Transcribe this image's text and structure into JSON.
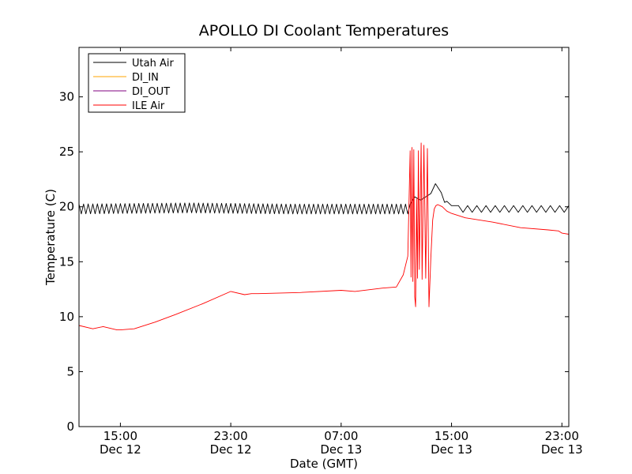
{
  "chart_data": {
    "type": "line",
    "title": "APOLLO DI Coolant Temperatures",
    "xlabel": "Date (GMT)",
    "ylabel": "Temperature (C)",
    "xlim": [
      "2012-12-12 12:00",
      "2012-12-13 23:30"
    ],
    "ylim": [
      0,
      34.5
    ],
    "yticks": [
      0,
      5,
      10,
      15,
      20,
      25,
      30
    ],
    "xticks": [
      {
        "x": "2012-12-12 15:00",
        "time": "15:00",
        "date": "Dec 12"
      },
      {
        "x": "2012-12-12 23:00",
        "time": "23:00",
        "date": "Dec 12"
      },
      {
        "x": "2012-12-13 07:00",
        "time": "07:00",
        "date": "Dec 13"
      },
      {
        "x": "2012-12-13 15:00",
        "time": "15:00",
        "date": "Dec 13"
      },
      {
        "x": "2012-12-13 23:00",
        "time": "23:00",
        "date": "Dec 13"
      }
    ],
    "grid": false,
    "legend_position": "top-left",
    "series": [
      {
        "name": "Utah Air",
        "color": "#000000",
        "x": [
          "2012-12-12 12:00",
          "2012-12-12 20:00",
          "2012-12-13 03:00",
          "2012-12-13 10:00",
          "2012-12-13 12:00",
          "2012-12-13 12:20",
          "2012-12-13 12:45",
          "2012-12-13 13:30",
          "2012-12-13 13:50",
          "2012-12-13 14:15",
          "2012-12-13 14:30",
          "2012-12-13 14:40",
          "2012-12-13 15:00",
          "2012-12-13 15:30",
          "2012-12-13 17:00",
          "2012-12-13 19:00",
          "2012-12-13 21:00",
          "2012-12-13 23:30"
        ],
        "y": [
          19.8,
          19.9,
          19.8,
          19.8,
          19.8,
          20.9,
          20.6,
          21.2,
          22.1,
          21.3,
          20.4,
          20.5,
          20.1,
          19.8,
          19.8,
          19.8,
          19.8,
          19.8
        ],
        "oscillation": {
          "start": "2012-12-12 12:00",
          "end": "2012-12-13 12:00",
          "amplitude": 0.45
        },
        "oscillation_after": {
          "start": "2012-12-13 15:30",
          "end": "2012-12-13 23:30",
          "amplitude": 0.3
        }
      },
      {
        "name": "DI_IN",
        "color": "#ffa500",
        "x": [],
        "y": []
      },
      {
        "name": "DI_OUT",
        "color": "#800080",
        "x": [],
        "y": []
      },
      {
        "name": "ILE Air",
        "color": "#ff0000",
        "x": [
          "2012-12-12 12:00",
          "2012-12-12 13:00",
          "2012-12-12 13:45",
          "2012-12-12 14:45",
          "2012-12-12 15:00",
          "2012-12-12 16:00",
          "2012-12-12 17:30",
          "2012-12-12 19:00",
          "2012-12-12 21:00",
          "2012-12-12 23:00",
          "2012-12-13 00:00",
          "2012-12-13 00:30",
          "2012-12-13 01:00",
          "2012-12-13 04:00",
          "2012-12-13 07:00",
          "2012-12-13 08:00",
          "2012-12-13 10:00",
          "2012-12-13 11:00",
          "2012-12-13 11:30",
          "2012-12-13 11:50",
          "2012-12-13 12:00",
          "2012-12-13 12:04",
          "2012-12-13 12:08",
          "2012-12-13 12:12",
          "2012-12-13 12:16",
          "2012-12-13 12:20",
          "2012-12-13 12:24",
          "2012-12-13 12:28",
          "2012-12-13 12:32",
          "2012-12-13 12:36",
          "2012-12-13 12:40",
          "2012-12-13 12:48",
          "2012-12-13 12:52",
          "2012-12-13 13:00",
          "2012-12-13 13:08",
          "2012-12-13 13:15",
          "2012-12-13 13:22",
          "2012-12-13 13:30",
          "2012-12-13 13:38",
          "2012-12-13 13:45",
          "2012-12-13 13:52",
          "2012-12-13 14:00",
          "2012-12-13 14:20",
          "2012-12-13 14:40",
          "2012-12-13 15:00",
          "2012-12-13 16:00",
          "2012-12-13 18:00",
          "2012-12-13 20:00",
          "2012-12-13 22:00",
          "2012-12-13 22:45",
          "2012-12-13 23:00",
          "2012-12-13 23:30"
        ],
        "y": [
          9.2,
          8.9,
          9.1,
          8.8,
          8.8,
          8.9,
          9.5,
          10.2,
          11.2,
          12.3,
          12.0,
          12.1,
          12.1,
          12.2,
          12.4,
          12.3,
          12.6,
          12.7,
          13.8,
          15.5,
          25.1,
          13.6,
          25.4,
          13.2,
          25.2,
          11.8,
          10.9,
          20.7,
          13.5,
          25.1,
          14.3,
          25.8,
          13.4,
          25.6,
          13.5,
          25.3,
          10.9,
          15.4,
          18.8,
          19.8,
          20.1,
          20.2,
          20.0,
          19.6,
          19.4,
          19.0,
          18.6,
          18.1,
          17.9,
          17.8,
          17.6,
          17.5
        ]
      }
    ]
  }
}
